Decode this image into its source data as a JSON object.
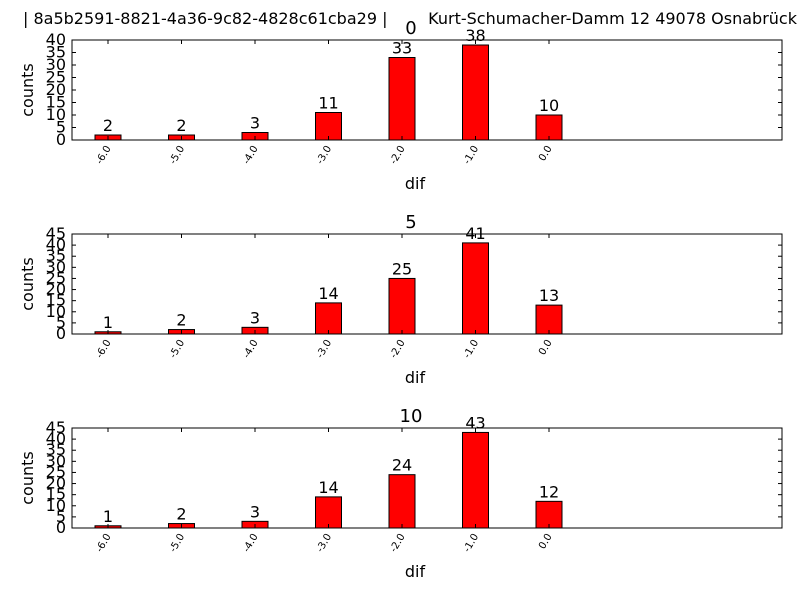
{
  "header": {
    "text": "| 8a5b2591-8821-4a36-9c82-4828c61cba29 |        Kurt-Schumacher-Damm 12 49078 Osnabrück"
  },
  "style": {
    "bar_color": "#ff0000",
    "edge_color": "#000000",
    "text_color": "#000000"
  },
  "chart_data": [
    {
      "type": "bar",
      "title": "0",
      "xlabel": "dif",
      "ylabel": "counts",
      "categories": [
        "-6.0",
        "-5.0",
        "-4.0",
        "-3.0",
        "-2.0",
        "-1.0",
        "0.0"
      ],
      "values": [
        2,
        2,
        3,
        11,
        33,
        38,
        10
      ],
      "ylim": [
        0,
        40
      ],
      "yticks": [
        0,
        5,
        10,
        15,
        20,
        25,
        30,
        35,
        40
      ],
      "grid": false,
      "data_labels": true
    },
    {
      "type": "bar",
      "title": "5",
      "xlabel": "dif",
      "ylabel": "counts",
      "categories": [
        "-6.0",
        "-5.0",
        "-4.0",
        "-3.0",
        "-2.0",
        "-1.0",
        "0.0"
      ],
      "values": [
        1,
        2,
        3,
        14,
        25,
        41,
        13
      ],
      "ylim": [
        0,
        45
      ],
      "yticks": [
        0,
        5,
        10,
        15,
        20,
        25,
        30,
        35,
        40,
        45
      ],
      "grid": false,
      "data_labels": true
    },
    {
      "type": "bar",
      "title": "10",
      "xlabel": "dif",
      "ylabel": "counts",
      "categories": [
        "-6.0",
        "-5.0",
        "-4.0",
        "-3.0",
        "-2.0",
        "-1.0",
        "0.0"
      ],
      "values": [
        1,
        2,
        3,
        14,
        24,
        43,
        12
      ],
      "ylim": [
        0,
        45
      ],
      "yticks": [
        0,
        5,
        10,
        15,
        20,
        25,
        30,
        35,
        40,
        45
      ],
      "grid": false,
      "data_labels": true
    }
  ]
}
